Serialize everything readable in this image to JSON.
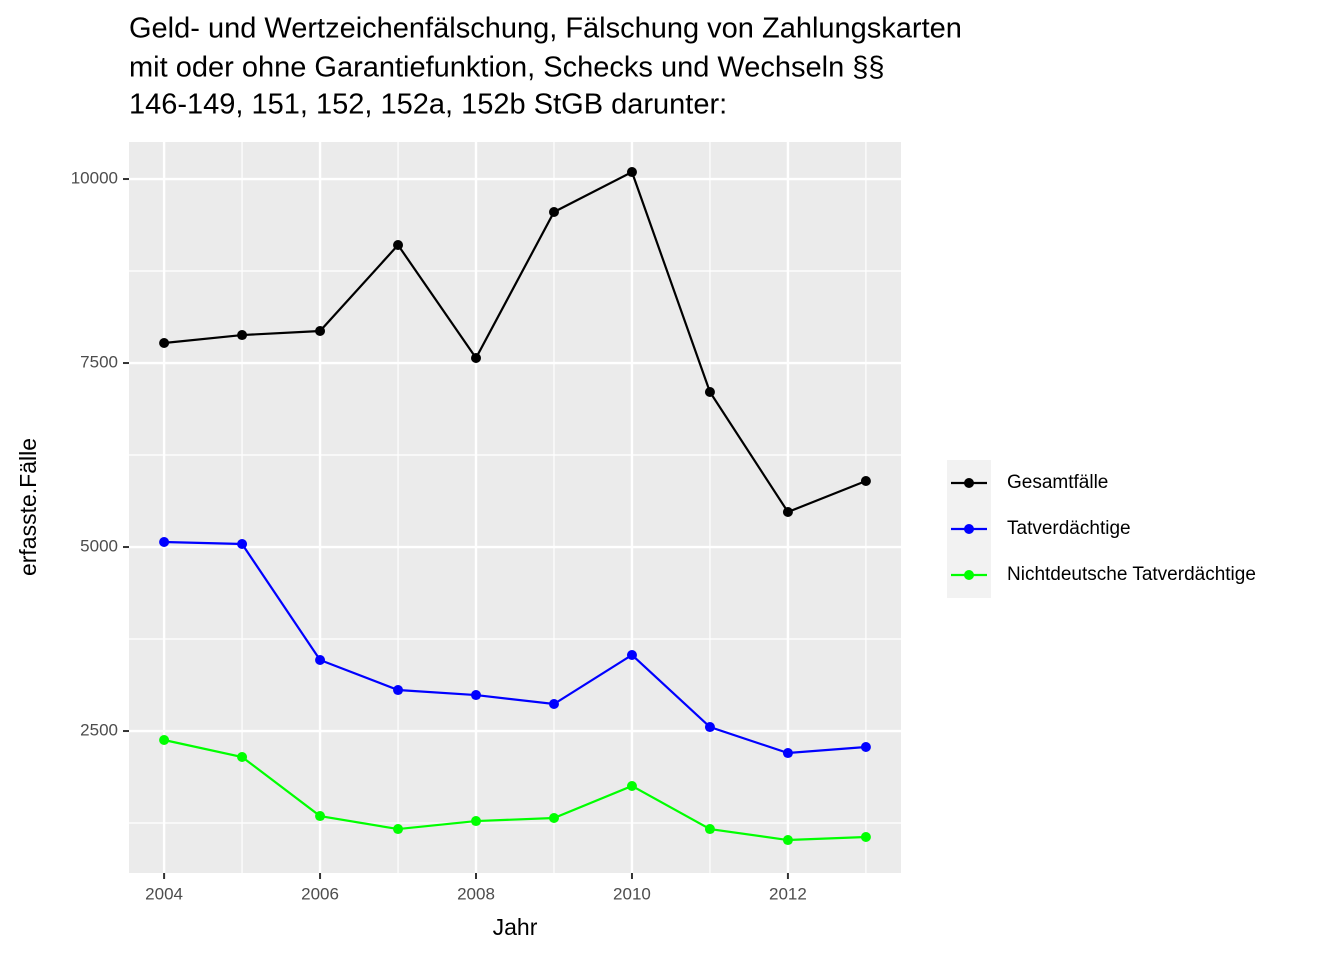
{
  "chart_data": {
    "type": "line",
    "title": [
      "Geld- und Wertzeichenfälschung, Fälschung von Zahlungskarten",
      "mit oder ohne Garantiefunktion, Schecks und Wechseln §§",
      "146-149, 151, 152, 152a, 152b StGB darunter:"
    ],
    "x_label": "Jahr",
    "y_label": "erfasste.Fälle",
    "x": [
      2004,
      2005,
      2006,
      2007,
      2008,
      2009,
      2010,
      2011,
      2012,
      2013
    ],
    "series": [
      {
        "name": "Gesamtfälle",
        "color": "#000000",
        "values": [
          7772,
          7880,
          7935,
          9103,
          7568,
          9552,
          10095,
          7106,
          5476,
          5897
        ]
      },
      {
        "name": "Tatverdächtige",
        "color": "#0000ff",
        "values": [
          5068,
          5041,
          3465,
          3057,
          2989,
          2867,
          3533,
          2554,
          2201,
          2283
        ]
      },
      {
        "name": "Nichtdeutsche Tatverdächtige",
        "color": "#00ff00",
        "values": [
          2378,
          2147,
          1345,
          1168,
          1277,
          1318,
          1753,
          1168,
          1019,
          1060
        ]
      }
    ],
    "xlim": [
      2003.55,
      2013.45
    ],
    "xticks": [
      2004,
      2006,
      2008,
      2010,
      2012
    ],
    "ylim": [
      571,
      10503
    ],
    "yticks": [
      2500,
      5000,
      7500,
      10000
    ],
    "grid": true,
    "legend": "right"
  }
}
